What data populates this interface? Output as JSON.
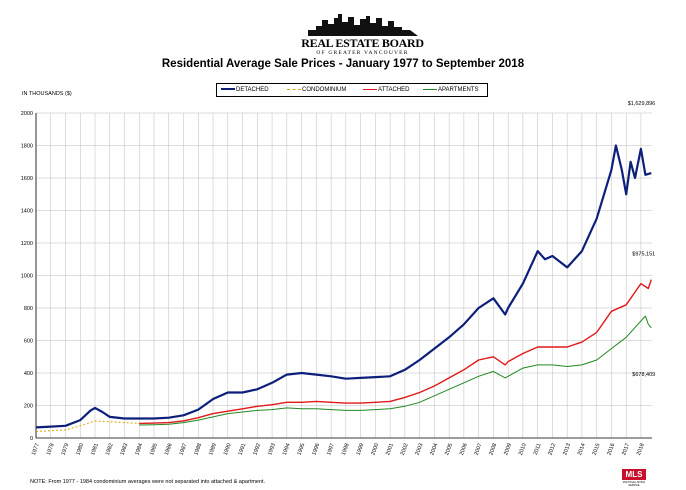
{
  "logo": {
    "title": "REAL ESTATE BOARD",
    "subtitle": "OF GREATER VANCOUVER"
  },
  "colors": {
    "detached": "#0d1f7a",
    "condominium": "#d9a400",
    "attached": "#e01818",
    "apartments": "#1f8a1f",
    "grid": "#bdbdbd",
    "axis": "#000000"
  },
  "units_label": "IN THOUSANDS ($)",
  "note": "NOTE:  From 1977 - 1984 condominium averages were not separated into attached & apartment.",
  "mls_badge": {
    "logo": "MLS",
    "text": "MULTIPLE LISTING SERVICE"
  },
  "chart_data": {
    "type": "line",
    "title": "Residential Average Sale Prices  -  January 1977 to September 2018",
    "ylim": [
      0,
      2000
    ],
    "yticks": [
      0,
      200,
      400,
      600,
      800,
      1000,
      1200,
      1400,
      1600,
      1800,
      2000
    ],
    "xlim": [
      1977,
      2018.75
    ],
    "xticks": [
      "1977",
      "1978",
      "1979",
      "1980",
      "1981",
      "1982",
      "1983",
      "1984",
      "1985",
      "1986",
      "1987",
      "1988",
      "1989",
      "1990",
      "1991",
      "1992",
      "1993",
      "1994",
      "1995",
      "1996",
      "1997",
      "1998",
      "1999",
      "2000",
      "2001",
      "2002",
      "2003",
      "2004",
      "2005",
      "2006",
      "2007",
      "2008",
      "2009",
      "2010",
      "2011",
      "2012",
      "2013",
      "2014",
      "2015",
      "2016",
      "2017",
      "2018"
    ],
    "grid": true,
    "legend_position": "top-center",
    "annotations": [
      {
        "series": "DETACHED",
        "text": "$1,629,896"
      },
      {
        "series": "ATTACHED",
        "text": "$975,151"
      },
      {
        "series": "APARTMENTS",
        "text": "$678,409"
      }
    ],
    "series": [
      {
        "name": "DETACHED",
        "color_key": "detached",
        "dash": "",
        "points": [
          [
            1977,
            65
          ],
          [
            1978,
            70
          ],
          [
            1979,
            75
          ],
          [
            1980,
            110
          ],
          [
            1980.7,
            170
          ],
          [
            1981,
            185
          ],
          [
            1981.5,
            160
          ],
          [
            1982,
            130
          ],
          [
            1983,
            120
          ],
          [
            1984,
            120
          ],
          [
            1985,
            120
          ],
          [
            1986,
            125
          ],
          [
            1987,
            140
          ],
          [
            1988,
            175
          ],
          [
            1989,
            240
          ],
          [
            1990,
            280
          ],
          [
            1991,
            280
          ],
          [
            1992,
            300
          ],
          [
            1993,
            340
          ],
          [
            1994,
            390
          ],
          [
            1995,
            400
          ],
          [
            1996,
            390
          ],
          [
            1997,
            380
          ],
          [
            1998,
            365
          ],
          [
            1999,
            370
          ],
          [
            2000,
            375
          ],
          [
            2001,
            380
          ],
          [
            2002,
            420
          ],
          [
            2003,
            480
          ],
          [
            2004,
            550
          ],
          [
            2005,
            620
          ],
          [
            2006,
            700
          ],
          [
            2007,
            800
          ],
          [
            2008,
            860
          ],
          [
            2008.8,
            760
          ],
          [
            2009,
            800
          ],
          [
            2010,
            950
          ],
          [
            2011,
            1150
          ],
          [
            2011.5,
            1100
          ],
          [
            2012,
            1120
          ],
          [
            2013,
            1050
          ],
          [
            2014,
            1150
          ],
          [
            2015,
            1350
          ],
          [
            2016,
            1650
          ],
          [
            2016.3,
            1800
          ],
          [
            2016.7,
            1650
          ],
          [
            2017,
            1500
          ],
          [
            2017.3,
            1700
          ],
          [
            2017.6,
            1600
          ],
          [
            2018,
            1780
          ],
          [
            2018.3,
            1620
          ],
          [
            2018.7,
            1630
          ]
        ]
      },
      {
        "name": "CONDOMINIUM",
        "color_key": "condominium",
        "dash": "2,2",
        "points": [
          [
            1977,
            40
          ],
          [
            1978,
            45
          ],
          [
            1979,
            50
          ],
          [
            1980,
            75
          ],
          [
            1981,
            105
          ],
          [
            1982,
            100
          ],
          [
            1983,
            95
          ],
          [
            1984,
            90
          ]
        ]
      },
      {
        "name": "ATTACHED",
        "color_key": "attached",
        "dash": "",
        "points": [
          [
            1984,
            90
          ],
          [
            1985,
            92
          ],
          [
            1986,
            95
          ],
          [
            1987,
            105
          ],
          [
            1988,
            125
          ],
          [
            1989,
            150
          ],
          [
            1990,
            165
          ],
          [
            1991,
            180
          ],
          [
            1992,
            195
          ],
          [
            1993,
            205
          ],
          [
            1994,
            220
          ],
          [
            1995,
            220
          ],
          [
            1996,
            225
          ],
          [
            1997,
            220
          ],
          [
            1998,
            215
          ],
          [
            1999,
            215
          ],
          [
            2000,
            220
          ],
          [
            2001,
            225
          ],
          [
            2002,
            250
          ],
          [
            2003,
            280
          ],
          [
            2004,
            320
          ],
          [
            2005,
            370
          ],
          [
            2006,
            420
          ],
          [
            2007,
            480
          ],
          [
            2008,
            500
          ],
          [
            2008.8,
            450
          ],
          [
            2009,
            470
          ],
          [
            2010,
            520
          ],
          [
            2011,
            560
          ],
          [
            2012,
            560
          ],
          [
            2013,
            560
          ],
          [
            2014,
            590
          ],
          [
            2015,
            650
          ],
          [
            2016,
            780
          ],
          [
            2017,
            820
          ],
          [
            2018,
            950
          ],
          [
            2018.5,
            920
          ],
          [
            2018.7,
            975
          ]
        ]
      },
      {
        "name": "APARTMENTS",
        "color_key": "apartments",
        "dash": "",
        "points": [
          [
            1984,
            80
          ],
          [
            1985,
            82
          ],
          [
            1986,
            85
          ],
          [
            1987,
            95
          ],
          [
            1988,
            110
          ],
          [
            1989,
            130
          ],
          [
            1990,
            150
          ],
          [
            1991,
            160
          ],
          [
            1992,
            170
          ],
          [
            1993,
            175
          ],
          [
            1994,
            185
          ],
          [
            1995,
            180
          ],
          [
            1996,
            180
          ],
          [
            1997,
            175
          ],
          [
            1998,
            170
          ],
          [
            1999,
            170
          ],
          [
            2000,
            175
          ],
          [
            2001,
            180
          ],
          [
            2002,
            195
          ],
          [
            2003,
            220
          ],
          [
            2004,
            260
          ],
          [
            2005,
            300
          ],
          [
            2006,
            340
          ],
          [
            2007,
            380
          ],
          [
            2008,
            410
          ],
          [
            2008.8,
            370
          ],
          [
            2009,
            380
          ],
          [
            2010,
            430
          ],
          [
            2011,
            450
          ],
          [
            2012,
            450
          ],
          [
            2013,
            440
          ],
          [
            2014,
            450
          ],
          [
            2015,
            480
          ],
          [
            2016,
            550
          ],
          [
            2017,
            620
          ],
          [
            2018,
            720
          ],
          [
            2018.3,
            750
          ],
          [
            2018.5,
            700
          ],
          [
            2018.7,
            678
          ]
        ]
      }
    ]
  }
}
